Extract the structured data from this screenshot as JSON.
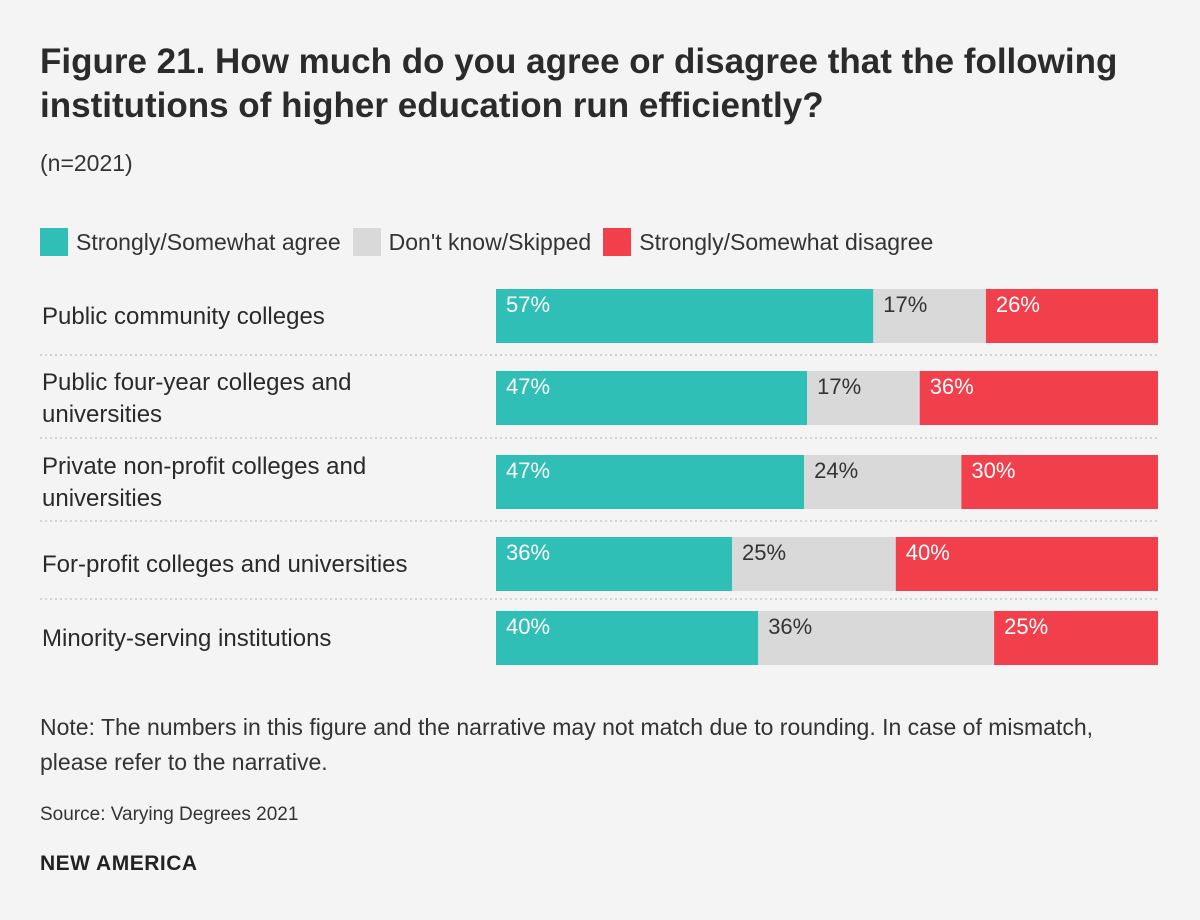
{
  "title": "Figure 21. How much do you agree or disagree that the following institutions of higher education run efficiently?",
  "subtitle": "(n=2021)",
  "note": "Note: The numbers in this figure and the narrative may not match due to rounding. In case of mismatch, please refer to the narrative.",
  "source": "Source: Varying Degrees 2021",
  "brand": "NEW AMERICA",
  "chart_data": {
    "type": "bar",
    "orientation": "horizontal",
    "stacked": true,
    "categories": [
      "Public community colleges",
      "Public four-year colleges and universities",
      "Private non-profit colleges and universities",
      "For-profit colleges and universities",
      "Minority-serving institutions"
    ],
    "series": [
      {
        "name": "Strongly/Somewhat agree",
        "color": "#30bfb6",
        "label_color": "#ffffff",
        "values": [
          57,
          47,
          47,
          36,
          40
        ]
      },
      {
        "name": "Don't know/Skipped",
        "color": "#d9d9d9",
        "label_color": "#333333",
        "values": [
          17,
          17,
          24,
          25,
          36
        ]
      },
      {
        "name": "Strongly/Somewhat disagree",
        "color": "#f23f4c",
        "label_color": "#ffffff",
        "values": [
          26,
          36,
          30,
          40,
          25
        ]
      }
    ],
    "value_suffix": "%",
    "legend_position": "top-left",
    "grid": false
  }
}
